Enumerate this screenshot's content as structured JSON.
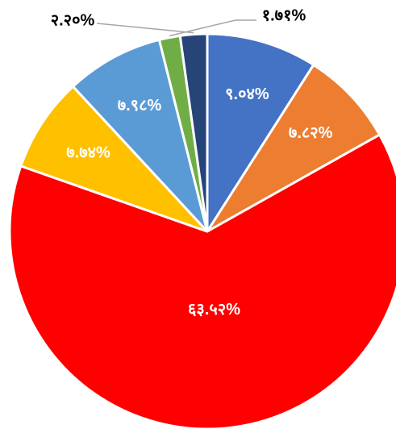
{
  "chart_data": {
    "type": "pie",
    "categories": [
      null,
      null,
      null,
      null,
      null,
      null,
      null
    ],
    "values": [
      9.04,
      7.82,
      63.52,
      7.74,
      7.98,
      1.71,
      2.2
    ],
    "value_labels": [
      "९.०४%",
      "७.८२%",
      "६३.५२%",
      "७.७४%",
      "७.९८%",
      "१.७१%",
      "२.२०%"
    ],
    "colors": [
      "#4472c4",
      "#ed7d31",
      "#ff0000",
      "#ffc000",
      "#5b9bd5",
      "#70ad47",
      "#264478"
    ]
  }
}
